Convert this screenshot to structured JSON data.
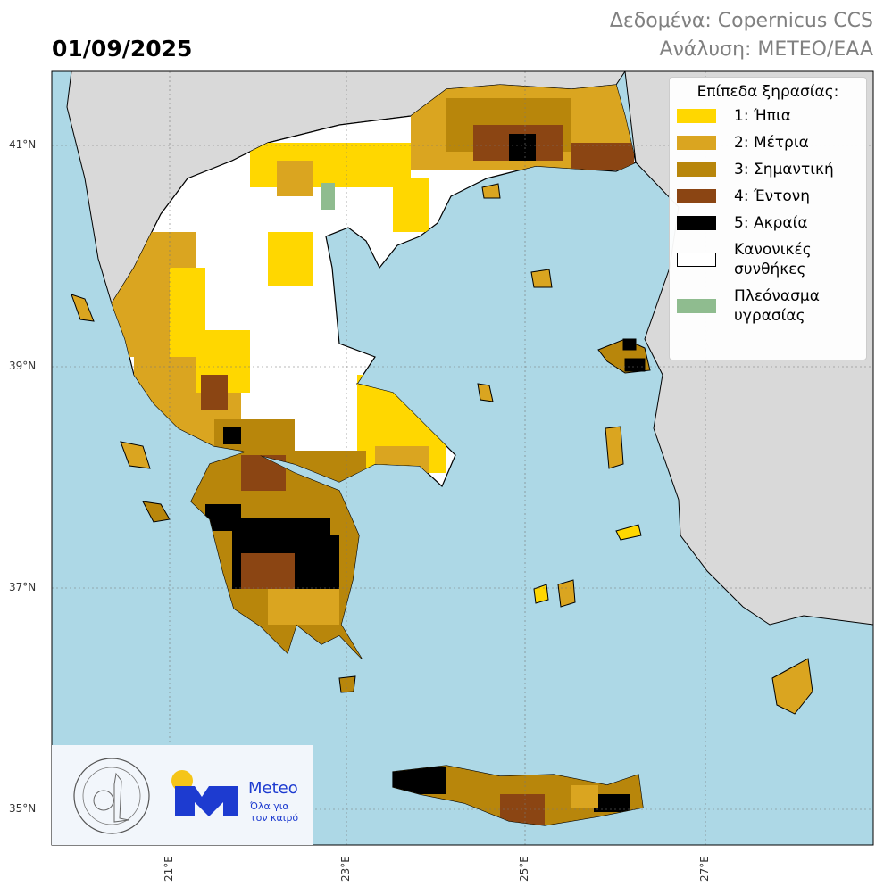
{
  "header": {
    "date": "01/09/2025",
    "credits_line1": "Δεδομένα: Copernicus CCS",
    "credits_line2": "Ανάλυση: METEO/EAA"
  },
  "map": {
    "region": "Greece",
    "colors": {
      "sea": "#add8e6",
      "other_land": "#d9d9d9",
      "border": "#000000"
    },
    "lat_ticks": [
      "41°N",
      "39°N",
      "37°N",
      "35°N"
    ],
    "lon_ticks": [
      "21°E",
      "23°E",
      "25°E",
      "27°E"
    ]
  },
  "legend": {
    "title": "Επίπεδα ξηρασίας:",
    "items": [
      {
        "label": "1:  Ήπια",
        "color": "#ffd700"
      },
      {
        "label": "2:  Μέτρια",
        "color": "#daa520"
      },
      {
        "label": "3:  Σημαντική",
        "color": "#b8860b"
      },
      {
        "label": "4:  Έντονη",
        "color": "#8b4513"
      },
      {
        "label": "5:  Ακραία",
        "color": "#000000"
      },
      {
        "label": "Κανονικές συνθήκες",
        "color": "#ffffff"
      },
      {
        "label": "Πλεόνασμα υγρασίας",
        "color": "#8fbc8f"
      }
    ]
  },
  "logos": {
    "observatory": "National Observatory of Athens",
    "meteo_name": "Meteo",
    "meteo_tagline_1": "Όλα για",
    "meteo_tagline_2": "τον καιρό",
    "meteo_colors": {
      "mark": "#1d3bd0",
      "sun": "#f5c518"
    }
  }
}
